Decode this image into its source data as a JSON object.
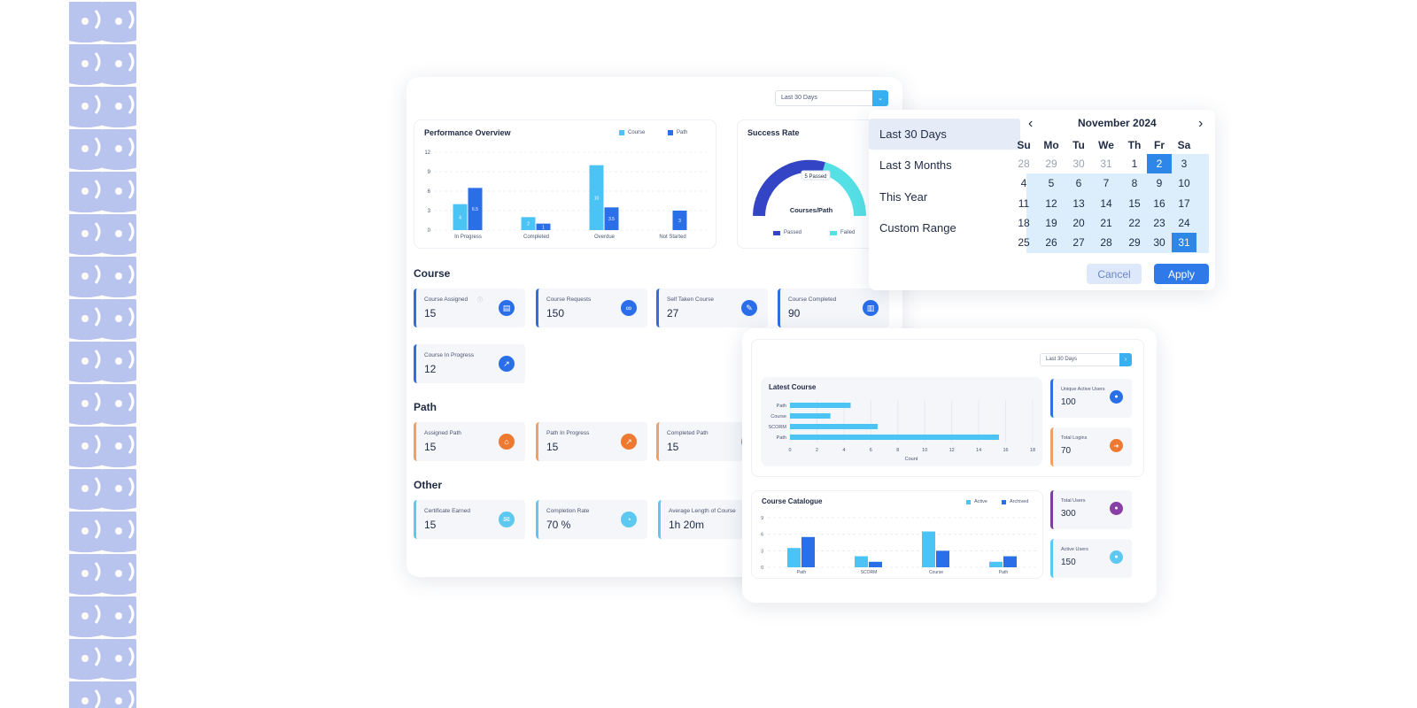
{
  "dashboard": {
    "range_select": "Last 30 Days",
    "performance": {
      "title": "Performance Overview",
      "legend": [
        "Course",
        "Path"
      ]
    },
    "success_rate": {
      "title": "Success Rate",
      "badge": "5 Passed",
      "center_label": "Courses/Path",
      "legend": [
        "Passed",
        "Failed"
      ]
    },
    "sections": {
      "course": "Course",
      "path": "Path",
      "other": "Other"
    },
    "course_stats": [
      {
        "label": "Course Assigned",
        "value": "15",
        "icon": "clipboard-icon"
      },
      {
        "label": "Course Requests",
        "value": "150",
        "icon": "link-icon"
      },
      {
        "label": "Self Taken Course",
        "value": "27",
        "icon": "user-book-icon"
      },
      {
        "label": "Course Completed",
        "value": "90",
        "icon": "book-icon"
      },
      {
        "label": "Course In Progress",
        "value": "12",
        "icon": "chart-icon"
      }
    ],
    "path_stats": [
      {
        "label": "Assigned Path",
        "value": "15",
        "icon": "path-icon"
      },
      {
        "label": "Path In Progress",
        "value": "15",
        "icon": "progress-icon"
      },
      {
        "label": "Completed Path",
        "value": "15",
        "icon": "check-icon"
      }
    ],
    "other_stats": [
      {
        "label": "Certificate Earned",
        "value": "15",
        "icon": "certificate-icon"
      },
      {
        "label": "Completion Rate",
        "value": "70 %",
        "icon": "gauge-icon"
      },
      {
        "label": "Average Length  of Course",
        "value": "1h 20m",
        "icon": "clock-icon"
      }
    ]
  },
  "datepicker": {
    "options": [
      "Last 30 Days",
      "Last 3 Months",
      "This Year",
      "Custom Range"
    ],
    "month": "November 2024",
    "weekdays": [
      "Su",
      "Mo",
      "Tu",
      "We",
      "Th",
      "Fr",
      "Sa"
    ],
    "weeks": [
      [
        "28",
        "29",
        "30",
        "31",
        "1",
        "2",
        "3"
      ],
      [
        "4",
        "5",
        "6",
        "7",
        "8",
        "9",
        "10"
      ],
      [
        "11",
        "12",
        "13",
        "14",
        "15",
        "16",
        "17"
      ],
      [
        "18",
        "19",
        "20",
        "21",
        "22",
        "23",
        "24"
      ],
      [
        "25",
        "26",
        "27",
        "28",
        "29",
        "30",
        "31"
      ]
    ],
    "cancel": "Cancel",
    "apply": "Apply",
    "colors": {
      "accent": "#2d86e8",
      "range": "#dceefb",
      "muted": "#9aa3b2"
    }
  },
  "second": {
    "range_select": "Last 30 Days",
    "latest": {
      "title": "Latest Course",
      "xlabel": "Count"
    },
    "catalogue": {
      "title": "Course Catalogue",
      "legend": [
        "Active",
        "Archived"
      ]
    },
    "side_stats": [
      {
        "label": "Unique Active Users",
        "value": "100",
        "icon": "user-icon"
      },
      {
        "label": "Total Logins",
        "value": "70",
        "icon": "login-icon"
      },
      {
        "label": "Total Users",
        "value": "300",
        "icon": "users-icon"
      },
      {
        "label": "Active Users",
        "value": "150",
        "icon": "active-user-icon"
      }
    ]
  },
  "chart_data": [
    {
      "type": "bar",
      "title": "Performance Overview",
      "categories": [
        "In Progress",
        "Completed",
        "Overdue",
        "Not Started"
      ],
      "series": [
        {
          "name": "Course",
          "values": [
            4,
            2,
            10,
            0
          ]
        },
        {
          "name": "Path",
          "values": [
            6.5,
            1,
            3.5,
            3
          ]
        }
      ],
      "yticks": [
        0,
        3,
        6,
        9,
        12
      ],
      "ylim": [
        0,
        12
      ]
    },
    {
      "type": "pie",
      "title": "Success Rate",
      "series": [
        {
          "name": "Passed",
          "values": [
            5
          ]
        },
        {
          "name": "Failed",
          "values": [
            4
          ]
        }
      ]
    },
    {
      "type": "bar",
      "title": "Latest Course",
      "orientation": "horizontal",
      "categories": [
        "Path",
        "Course",
        "SCORM",
        "Path"
      ],
      "values": [
        4.5,
        3,
        6.5,
        15.5
      ],
      "xticks": [
        0,
        2,
        4,
        6,
        8,
        10,
        12,
        14,
        16,
        18
      ],
      "xlabel": "Count",
      "xlim": [
        0,
        18
      ]
    },
    {
      "type": "bar",
      "title": "Course Catalogue",
      "categories": [
        "Path",
        "SCORM",
        "Course",
        "Path"
      ],
      "series": [
        {
          "name": "Active",
          "values": [
            3.5,
            2,
            6.5,
            1
          ]
        },
        {
          "name": "Archived",
          "values": [
            5.5,
            1,
            3,
            2
          ]
        }
      ],
      "yticks": [
        0,
        3,
        6,
        9
      ],
      "ylim": [
        0,
        9
      ]
    }
  ]
}
